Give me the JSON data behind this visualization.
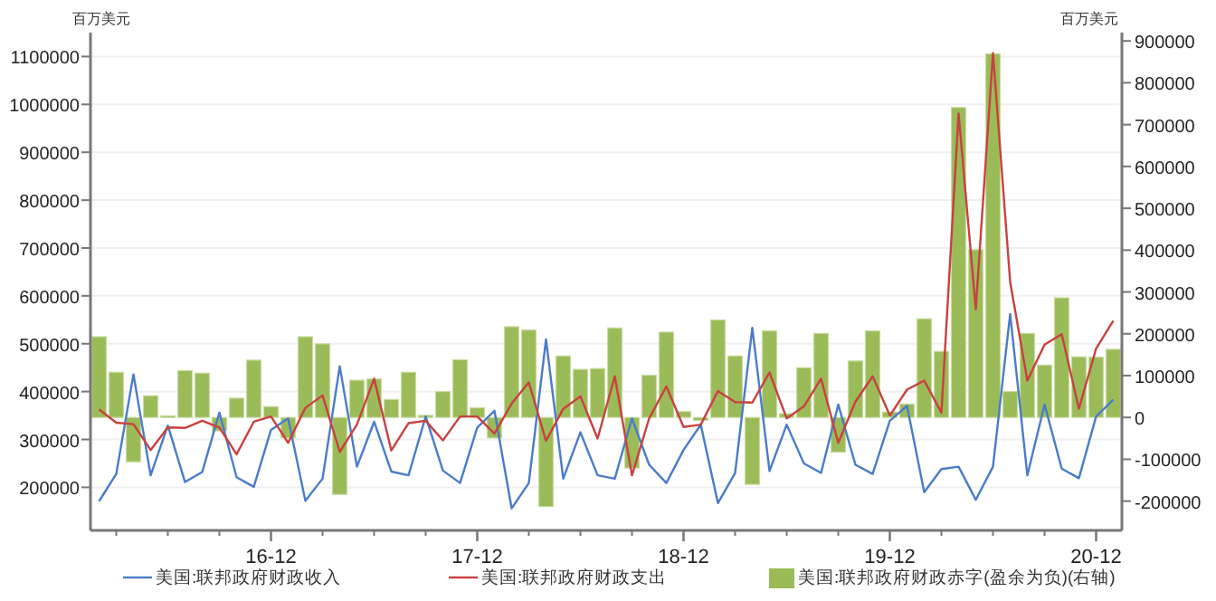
{
  "chart_data": {
    "type": "line",
    "ylabel": "百万美元",
    "y2label": "百万美元",
    "categories": [
      null,
      null,
      null,
      null,
      null,
      null,
      null,
      null,
      null,
      null,
      "16-12",
      null,
      null,
      null,
      null,
      null,
      null,
      null,
      null,
      null,
      null,
      null,
      "17-12",
      null,
      null,
      null,
      null,
      null,
      null,
      null,
      null,
      null,
      null,
      null,
      "18-12",
      null,
      null,
      null,
      null,
      null,
      null,
      null,
      null,
      null,
      null,
      null,
      "19-12",
      null,
      null,
      null,
      null,
      null,
      null,
      null,
      null,
      null,
      null,
      null,
      "20-12",
      null
    ],
    "series": [
      {
        "name": "美国:联邦政府财政收入",
        "color": "#4a7cc9",
        "values": [
          171000,
          228000,
          436000,
          225000,
          329000,
          211000,
          232000,
          356000,
          221000,
          201000,
          320000,
          344000,
          172000,
          218000,
          453000,
          243000,
          337000,
          233000,
          225000,
          348000,
          235000,
          209000,
          325000,
          360000,
          156000,
          209000,
          509000,
          218000,
          315000,
          225000,
          218000,
          344000,
          247000,
          209000,
          278000,
          331000,
          167000,
          230000,
          533000,
          234000,
          331000,
          250000,
          230000,
          373000,
          247000,
          228000,
          339000,
          370000,
          190000,
          238000,
          243000,
          174000,
          243000,
          562000,
          225000,
          373000,
          239000,
          219000,
          348000,
          383000
        ]
      },
      {
        "name": "美国:联邦政府财政支出",
        "color": "#c8413f",
        "values": [
          363000,
          335000,
          332000,
          278000,
          325000,
          324000,
          339000,
          325000,
          269000,
          337000,
          348000,
          293000,
          366000,
          392000,
          274000,
          331000,
          427000,
          277000,
          334000,
          339000,
          298000,
          348000,
          348000,
          312000,
          375000,
          419000,
          297000,
          364000,
          390000,
          302000,
          432000,
          225000,
          344000,
          411000,
          326000,
          331000,
          401000,
          378000,
          377000,
          440000,
          344000,
          369000,
          427000,
          293000,
          379000,
          432000,
          350000,
          404000,
          423000,
          356000,
          981000,
          572000,
          1107000,
          629000,
          423000,
          498000,
          520000,
          364000,
          490000,
          548000
        ]
      },
      {
        "name": "美国:联邦政府财政赤字(盈余为负)(右轴)",
        "color": "#9bbb59",
        "type": "bar",
        "axis": "y2",
        "values": [
          193000,
          108000,
          -106000,
          52000,
          4000,
          112000,
          106000,
          -32000,
          46000,
          137000,
          26000,
          -49000,
          193000,
          176000,
          -184000,
          89000,
          92000,
          43000,
          108000,
          5000,
          62000,
          138000,
          23000,
          -49000,
          217000,
          209000,
          -213000,
          147000,
          115000,
          117000,
          214000,
          -121000,
          101000,
          204000,
          14000,
          -7000,
          233000,
          147000,
          -160000,
          207000,
          9000,
          119000,
          201000,
          -83000,
          135000,
          207000,
          13000,
          32000,
          236000,
          158000,
          741000,
          401000,
          869000,
          62000,
          201000,
          125000,
          286000,
          145000,
          144000,
          163000
        ]
      }
    ],
    "ylim": [
      110000,
      1150000
    ],
    "yticks": [
      200000,
      300000,
      400000,
      500000,
      600000,
      700000,
      800000,
      900000,
      1000000,
      1100000
    ],
    "y2lim": [
      -270000,
      920000
    ],
    "y2ticks": [
      -200000,
      -100000,
      0,
      100000,
      200000,
      300000,
      400000,
      500000,
      600000,
      700000,
      800000,
      900000
    ],
    "grid": "y",
    "legend": "bottom"
  }
}
